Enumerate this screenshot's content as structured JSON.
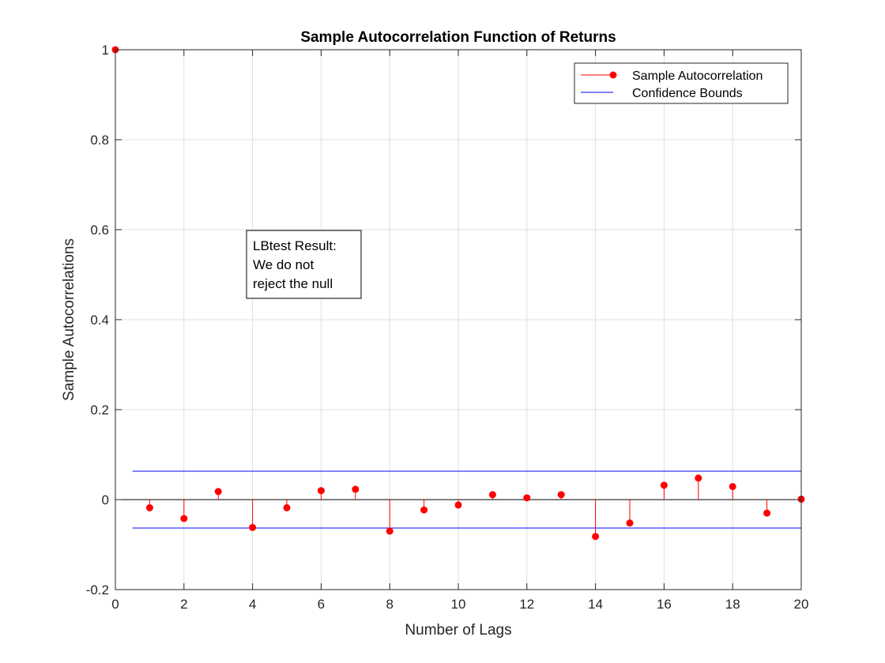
{
  "chart_data": {
    "type": "stem",
    "title": "Sample Autocorrelation Function of Returns",
    "xlabel": "Number of Lags",
    "ylabel": "Sample Autocorrelations",
    "xlim": [
      0,
      20
    ],
    "ylim": [
      -0.2,
      1
    ],
    "xticks": [
      "0",
      "2",
      "4",
      "6",
      "8",
      "10",
      "12",
      "14",
      "16",
      "18",
      "20"
    ],
    "yticks": [
      "-0.2",
      "0",
      "0.2",
      "0.4",
      "0.6",
      "0.8",
      "1"
    ],
    "grid": true,
    "legend_position": "top-right",
    "series": [
      {
        "name": "Sample Autocorrelation",
        "color": "#ff0000",
        "x": [
          0,
          1,
          2,
          3,
          4,
          5,
          6,
          7,
          8,
          9,
          10,
          11,
          12,
          13,
          14,
          15,
          16,
          17,
          18,
          19,
          20
        ],
        "values": [
          1.0,
          -0.018,
          -0.042,
          0.018,
          -0.062,
          -0.018,
          0.02,
          0.023,
          -0.07,
          -0.023,
          -0.012,
          0.011,
          0.004,
          0.011,
          -0.082,
          -0.052,
          0.032,
          0.048,
          0.029,
          -0.03,
          0.001
        ]
      },
      {
        "name": "Confidence Bounds",
        "color": "#0000ff",
        "bounds": [
          0.0632,
          -0.0632
        ],
        "x_range": [
          0.5,
          20
        ]
      }
    ],
    "annotation": {
      "lines": [
        "LBtest Result:",
        "We do not",
        "reject the null"
      ]
    }
  }
}
